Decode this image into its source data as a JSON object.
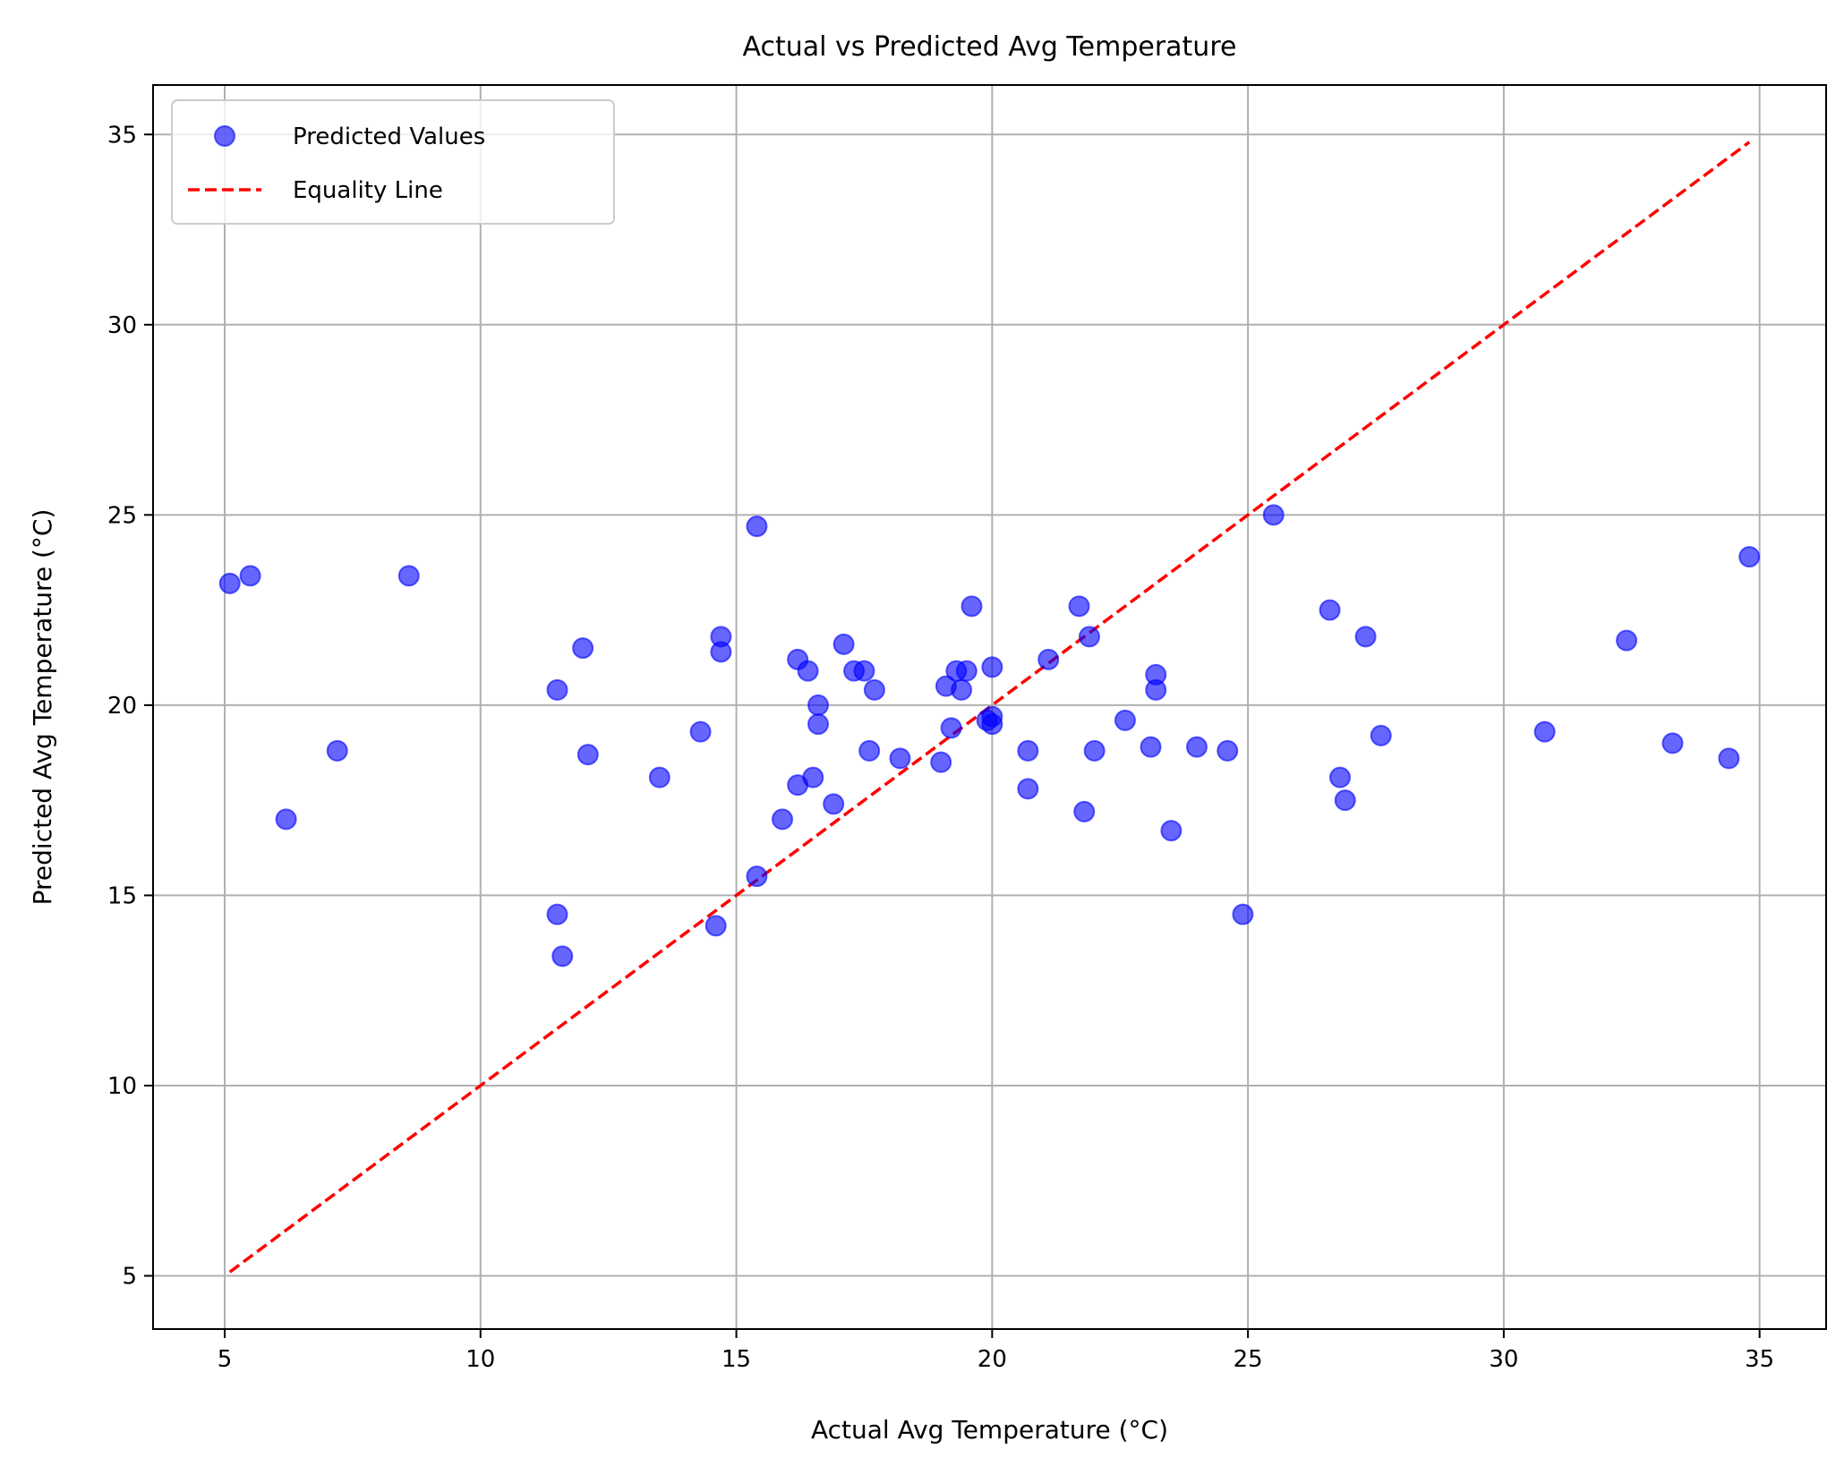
{
  "chart_data": {
    "type": "scatter",
    "title": "Actual vs Predicted Avg Temperature",
    "xlabel": "Actual Avg Temperature (°C)",
    "ylabel": "Predicted Avg Temperature (°C)",
    "xlim": [
      3.6,
      36.3
    ],
    "ylim": [
      3.6,
      36.3
    ],
    "xticks": [
      5,
      10,
      15,
      20,
      25,
      30,
      35
    ],
    "yticks": [
      5,
      10,
      15,
      20,
      25,
      30,
      35
    ],
    "grid": true,
    "legend_position": "top-left",
    "colors": {
      "points": "#0000ff",
      "line": "#ff0000",
      "grid": "#b0b0b0"
    },
    "series": [
      {
        "name": "Predicted Values",
        "kind": "scatter",
        "points": [
          [
            5.1,
            23.2
          ],
          [
            5.5,
            23.4
          ],
          [
            6.2,
            17.0
          ],
          [
            7.2,
            18.8
          ],
          [
            8.6,
            23.4
          ],
          [
            11.5,
            20.4
          ],
          [
            12.0,
            21.5
          ],
          [
            12.1,
            18.7
          ],
          [
            11.5,
            14.5
          ],
          [
            11.6,
            13.4
          ],
          [
            13.5,
            18.1
          ],
          [
            14.3,
            19.3
          ],
          [
            14.7,
            21.8
          ],
          [
            14.7,
            21.4
          ],
          [
            14.6,
            14.2
          ],
          [
            15.4,
            24.7
          ],
          [
            15.4,
            15.5
          ],
          [
            15.9,
            17.0
          ],
          [
            16.2,
            21.2
          ],
          [
            16.4,
            20.9
          ],
          [
            16.2,
            17.9
          ],
          [
            16.5,
            18.1
          ],
          [
            16.6,
            20.0
          ],
          [
            16.6,
            19.5
          ],
          [
            16.9,
            17.4
          ],
          [
            17.1,
            21.6
          ],
          [
            17.3,
            20.9
          ],
          [
            17.5,
            20.9
          ],
          [
            17.6,
            18.8
          ],
          [
            17.7,
            20.4
          ],
          [
            18.2,
            18.6
          ],
          [
            19.0,
            18.5
          ],
          [
            19.1,
            20.5
          ],
          [
            19.2,
            19.4
          ],
          [
            19.3,
            20.9
          ],
          [
            19.4,
            20.4
          ],
          [
            19.5,
            20.9
          ],
          [
            19.6,
            22.6
          ],
          [
            19.9,
            19.6
          ],
          [
            20.0,
            19.7
          ],
          [
            20.0,
            21.0
          ],
          [
            20.0,
            19.5
          ],
          [
            20.7,
            18.8
          ],
          [
            20.7,
            17.8
          ],
          [
            21.1,
            21.2
          ],
          [
            21.7,
            22.6
          ],
          [
            21.8,
            17.2
          ],
          [
            21.9,
            21.8
          ],
          [
            22.0,
            18.8
          ],
          [
            22.6,
            19.6
          ],
          [
            23.1,
            18.9
          ],
          [
            23.2,
            20.8
          ],
          [
            23.2,
            20.4
          ],
          [
            23.5,
            16.7
          ],
          [
            24.0,
            18.9
          ],
          [
            24.6,
            18.8
          ],
          [
            24.9,
            14.5
          ],
          [
            25.5,
            25.0
          ],
          [
            26.6,
            22.5
          ],
          [
            26.8,
            18.1
          ],
          [
            26.9,
            17.5
          ],
          [
            27.3,
            21.8
          ],
          [
            27.6,
            19.2
          ],
          [
            30.8,
            19.3
          ],
          [
            32.4,
            21.7
          ],
          [
            33.3,
            19.0
          ],
          [
            34.4,
            18.6
          ],
          [
            34.8,
            23.9
          ]
        ]
      },
      {
        "name": "Equality Line",
        "kind": "line",
        "points": [
          [
            5.1,
            5.1
          ],
          [
            34.8,
            34.8
          ]
        ]
      }
    ]
  }
}
